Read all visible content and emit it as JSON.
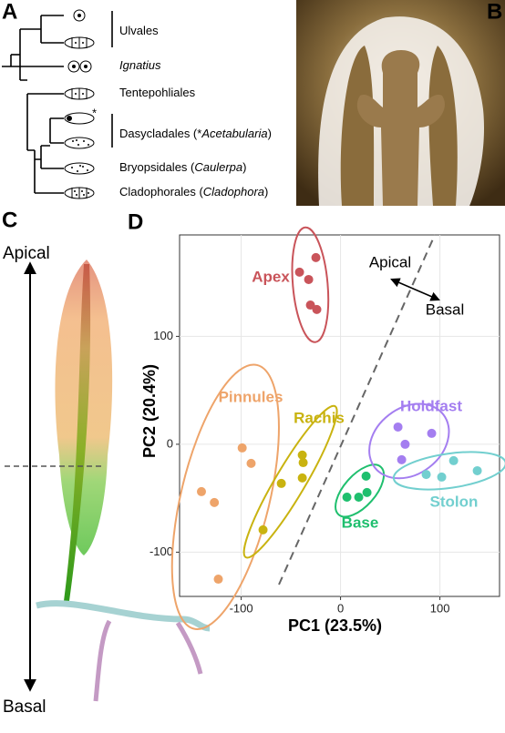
{
  "panel_labels": [
    "A",
    "B",
    "C",
    "D"
  ],
  "panel_a": {
    "clades": [
      {
        "parts": [
          "Ulvales"
        ]
      },
      {
        "parts": [
          "Ignatius"
        ]
      },
      {
        "parts": [
          "Tentepohliales"
        ]
      },
      {
        "parts": [
          "Dasycladales (*",
          "Acetabularia",
          ")"
        ]
      },
      {
        "parts": [
          "Bryopsidales (",
          "Caulerpa",
          ")"
        ]
      },
      {
        "parts": [
          "Cladophorales (",
          "Cladophora",
          ")"
        ]
      }
    ],
    "marker": "*"
  },
  "panel_c": {
    "top": "Apical",
    "bottom": "Basal"
  },
  "chart_data": {
    "type": "scatter",
    "xlabel": "PC1 (23.5%)",
    "ylabel": "PC2 (20.4%)",
    "xlim": [
      -162,
      160
    ],
    "ylim": [
      -141,
      194
    ],
    "xticks": [
      -100,
      0,
      100
    ],
    "yticks": [
      -100,
      0,
      100
    ],
    "grid": true,
    "annotations": [
      "Apical",
      "Basal"
    ],
    "series": [
      {
        "name": "Apex",
        "color": "#c9545a",
        "x": [
          -24.8,
          -41.3,
          -32.1,
          -30.3,
          -23.9
        ],
        "values": [
          173,
          159.5,
          152.7,
          129,
          124.9
        ]
      },
      {
        "name": "Pinnules",
        "color": "#eea46a",
        "x": [
          -99,
          -90,
          -140,
          -127,
          -123
        ],
        "values": [
          -3.4,
          -17.7,
          -43.9,
          -54,
          -125
        ]
      },
      {
        "name": "Rachis",
        "color": "#c9b310",
        "x": [
          -38.5,
          -37.6,
          -59.6,
          -38.5,
          -78
        ],
        "values": [
          -10,
          -17,
          -36.3,
          -31.2,
          -79.3
        ]
      },
      {
        "name": "Base",
        "color": "#1fbf6e",
        "x": [
          25.7,
          6.4,
          18.3,
          26.6
        ],
        "values": [
          -29.5,
          -49,
          -49,
          -44.7
        ]
      },
      {
        "name": "Holdfast",
        "color": "#a47ef0",
        "x": [
          57.8,
          91.7,
          65,
          61.5
        ],
        "values": [
          16,
          10.1,
          0,
          -14.3
        ]
      },
      {
        "name": "Stolon",
        "color": "#72cfcf",
        "x": [
          86.2,
          101.8,
          113.8,
          137.6
        ],
        "values": [
          -28,
          -30.4,
          -15.2,
          -24.5
        ]
      }
    ]
  }
}
